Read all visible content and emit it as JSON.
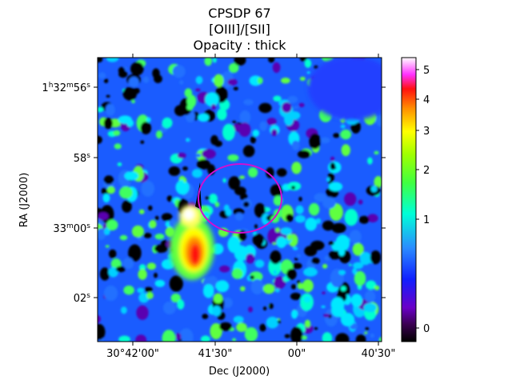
{
  "title": {
    "line1": "CPSDP 67",
    "line2": "[OIII]/[SII]",
    "line3": "Opacity : thick"
  },
  "chart_data": {
    "type": "heatmap",
    "title": "CPSDP 67 / [OIII]/[SII] / Opacity : thick",
    "xlabel": "Dec (J2000)",
    "ylabel": "RA (J2000)",
    "x_ticks": [
      "30°42'00\"",
      "41'30\"",
      "00\"",
      "40'30\""
    ],
    "y_ticks": [
      {
        "main": "1",
        "sup1": "h",
        "mid": "32",
        "sup2": "m",
        "end": "56",
        "sup3": "s"
      },
      {
        "main": "58",
        "sup3": "s"
      },
      {
        "main": "33",
        "sup2": "m",
        "end": "00",
        "sup3": "s"
      },
      {
        "main": "02",
        "sup3": "s"
      }
    ],
    "colorbar": {
      "colormap": "gist_ncar-like (black-purple-blue-cyan-green-yellow-orange-red-pink-white)",
      "scale": "nonlinear (sqrt-like)",
      "range": [
        -0.05,
        5.3
      ],
      "ticks": [
        "0",
        "1",
        "2",
        "3",
        "4",
        "5"
      ]
    },
    "features": {
      "ellipse_color": "#d010d0",
      "contour_color": "#a000c0",
      "bright_region": "lower-left of center, values 3–5"
    },
    "grid": false
  }
}
